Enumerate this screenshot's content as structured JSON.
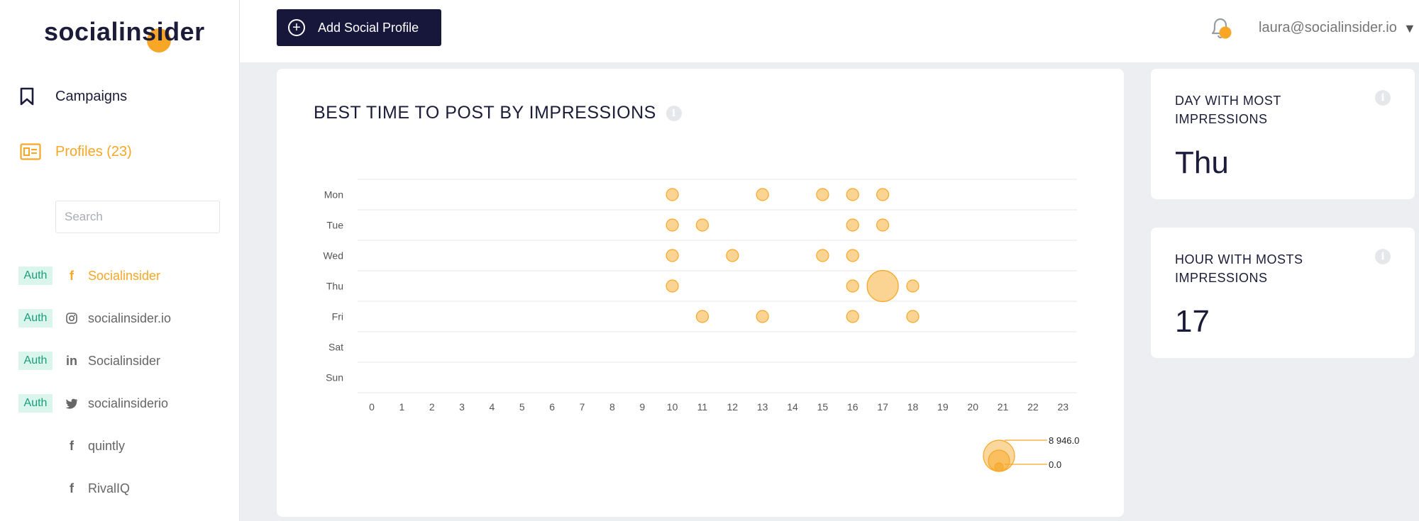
{
  "brand": {
    "logo_text": "socialinsider"
  },
  "nav": {
    "campaigns": "Campaigns",
    "profiles": "Profiles (23)"
  },
  "search": {
    "placeholder": "Search"
  },
  "profiles": [
    {
      "auth": "Auth",
      "network": "facebook",
      "name": "Socialinsider",
      "active": true
    },
    {
      "auth": "Auth",
      "network": "instagram",
      "name": "socialinsider.io",
      "active": false
    },
    {
      "auth": "Auth",
      "network": "linkedin",
      "name": "Socialinsider",
      "active": false
    },
    {
      "auth": "Auth",
      "network": "twitter",
      "name": "socialinsiderio",
      "active": false
    },
    {
      "auth": "",
      "network": "facebook",
      "name": "quintly",
      "active": false
    },
    {
      "auth": "",
      "network": "facebook",
      "name": "RivalIQ",
      "active": false
    }
  ],
  "topbar": {
    "add_profile_label": "Add Social Profile",
    "user_email": "laura@socialinsider.io",
    "caret": "▼"
  },
  "chart": {
    "title": "BEST TIME TO POST BY IMPRESSIONS"
  },
  "stats": {
    "day_label": "DAY WITH MOST IMPRESSIONS",
    "day_value": "Thu",
    "hour_label": "HOUR WITH MOSTS IMPRESSIONS",
    "hour_value": "17"
  },
  "colors": {
    "accent": "#f7a725",
    "dark": "#17163b",
    "auth_bg": "#d9f5ec",
    "auth_text": "#1a9d7a"
  },
  "chart_data": {
    "type": "scatter",
    "y_categories": [
      "Mon",
      "Tue",
      "Wed",
      "Thu",
      "Fri",
      "Sat",
      "Sun"
    ],
    "x_ticks": [
      "0",
      "1",
      "2",
      "3",
      "4",
      "5",
      "6",
      "7",
      "8",
      "9",
      "10",
      "11",
      "12",
      "13",
      "14",
      "15",
      "16",
      "17",
      "18",
      "19",
      "20",
      "21",
      "22",
      "23"
    ],
    "xlim": [
      0,
      23
    ],
    "grid": true,
    "size_legend": {
      "max_label": "8 946.0",
      "min_label": "0.0",
      "max": 8946.0,
      "min": 0.0,
      "placement": "bottom-right"
    },
    "points": [
      {
        "day": "Mon",
        "hour": 10,
        "value": 1200
      },
      {
        "day": "Mon",
        "hour": 13,
        "value": 1100
      },
      {
        "day": "Mon",
        "hour": 15,
        "value": 1000
      },
      {
        "day": "Mon",
        "hour": 16,
        "value": 1000
      },
      {
        "day": "Mon",
        "hour": 17,
        "value": 900
      },
      {
        "day": "Tue",
        "hour": 10,
        "value": 1100
      },
      {
        "day": "Tue",
        "hour": 11,
        "value": 1100
      },
      {
        "day": "Tue",
        "hour": 16,
        "value": 1000
      },
      {
        "day": "Tue",
        "hour": 17,
        "value": 1000
      },
      {
        "day": "Wed",
        "hour": 10,
        "value": 1000
      },
      {
        "day": "Wed",
        "hour": 12,
        "value": 900
      },
      {
        "day": "Wed",
        "hour": 15,
        "value": 1000
      },
      {
        "day": "Wed",
        "hour": 16,
        "value": 1000
      },
      {
        "day": "Thu",
        "hour": 10,
        "value": 900
      },
      {
        "day": "Thu",
        "hour": 16,
        "value": 1000
      },
      {
        "day": "Thu",
        "hour": 17,
        "value": 8946
      },
      {
        "day": "Thu",
        "hour": 18,
        "value": 900
      },
      {
        "day": "Fri",
        "hour": 11,
        "value": 1000
      },
      {
        "day": "Fri",
        "hour": 13,
        "value": 1100
      },
      {
        "day": "Fri",
        "hour": 16,
        "value": 900
      },
      {
        "day": "Fri",
        "hour": 18,
        "value": 1000
      }
    ]
  }
}
